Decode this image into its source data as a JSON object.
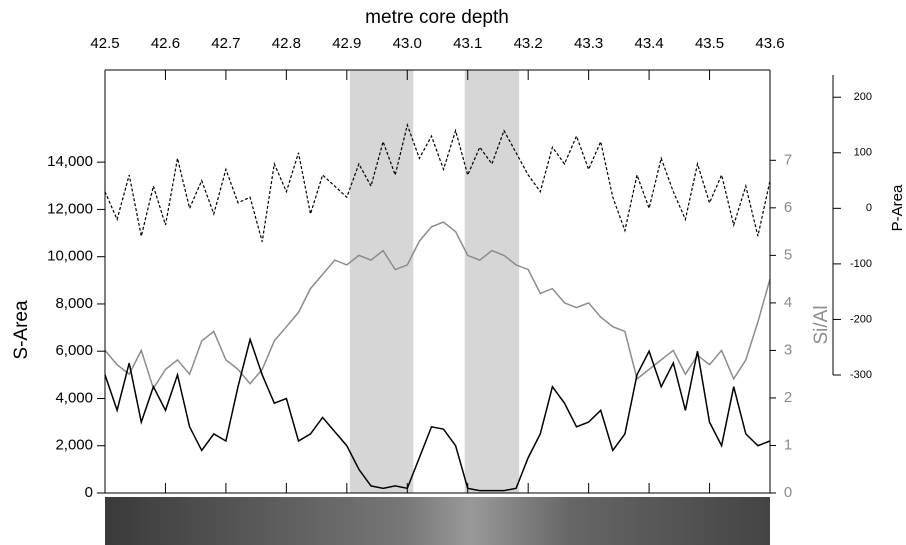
{
  "chart_data": {
    "type": "line",
    "xlabel": "metre core depth",
    "x": [
      42.5,
      42.52,
      42.54,
      42.56,
      42.58,
      42.6,
      42.62,
      42.64,
      42.66,
      42.68,
      42.7,
      42.72,
      42.74,
      42.76,
      42.78,
      42.8,
      42.82,
      42.84,
      42.86,
      42.88,
      42.9,
      42.92,
      42.94,
      42.96,
      42.98,
      43.0,
      43.02,
      43.04,
      43.06,
      43.08,
      43.1,
      43.12,
      43.14,
      43.16,
      43.18,
      43.2,
      43.22,
      43.24,
      43.26,
      43.28,
      43.3,
      43.32,
      43.34,
      43.36,
      43.38,
      43.4,
      43.42,
      43.44,
      43.46,
      43.48,
      43.5,
      43.52,
      43.54,
      43.56,
      43.58,
      43.6
    ],
    "xlim": [
      42.5,
      43.6
    ],
    "xticks": [
      42.5,
      42.6,
      42.7,
      42.8,
      42.9,
      {
        "value": 43.0,
        "label": "43.0"
      },
      43.1,
      43.2,
      43.3,
      43.4,
      43.5,
      43.6
    ],
    "ylim": [
      0,
      17900
    ],
    "yticks": [
      0,
      {
        "value": 2000,
        "label": "2,000"
      },
      {
        "value": 4000,
        "label": "4,000"
      },
      {
        "value": 6000,
        "label": "6,000"
      },
      {
        "value": 8000,
        "label": "8,000"
      },
      {
        "value": 10000,
        "label": "10,000"
      },
      {
        "value": 12000,
        "label": "12,000"
      },
      {
        "value": 14000,
        "label": "14,000"
      }
    ],
    "y2lim": [
      0,
      8.9
    ],
    "y2ticks": [
      0,
      1,
      2,
      3,
      4,
      5,
      6,
      7
    ],
    "y3lim": [
      -300,
      240
    ],
    "y3ticks": [
      -300,
      -200,
      -100,
      0,
      100,
      200
    ],
    "shaded_ranges": [
      [
        42.905,
        43.01
      ],
      [
        43.095,
        43.185
      ]
    ],
    "series": [
      {
        "name": "S-Area",
        "color": "#000000",
        "axis": "y",
        "values": [
          5000,
          3500,
          5500,
          3000,
          4500,
          3500,
          5000,
          2800,
          1800,
          2500,
          2200,
          4500,
          6500,
          5000,
          3800,
          4000,
          2200,
          2500,
          3200,
          2600,
          2000,
          1000,
          300,
          200,
          300,
          200,
          1500,
          2800,
          2700,
          2000,
          200,
          100,
          100,
          100,
          200,
          1500,
          2500,
          4500,
          3800,
          2800,
          3000,
          3500,
          1800,
          2500,
          5000,
          6000,
          4500,
          5500,
          3500,
          6000,
          3000,
          2000,
          4500,
          2500,
          2000,
          2200
        ]
      },
      {
        "name": "Si/Al",
        "color": "#8c8c8c",
        "axis": "y2",
        "values": [
          3,
          2.7,
          2.5,
          3.0,
          2.2,
          2.6,
          2.8,
          2.5,
          3.2,
          3.4,
          2.8,
          2.6,
          2.3,
          2.6,
          3.2,
          3.5,
          3.8,
          4.3,
          4.6,
          4.9,
          4.8,
          5.0,
          4.9,
          5.1,
          4.7,
          4.8,
          5.3,
          5.6,
          5.7,
          5.5,
          5.0,
          4.9,
          5.1,
          5.0,
          4.8,
          4.7,
          4.2,
          4.3,
          4.0,
          3.9,
          4.0,
          3.7,
          3.5,
          3.4,
          2.4,
          2.6,
          2.8,
          3.0,
          2.5,
          2.9,
          2.7,
          3.0,
          2.4,
          2.8,
          3.6,
          4.5
        ]
      },
      {
        "name": "P-Area",
        "color": "#000000",
        "axis": "y3",
        "dashed": true,
        "values": [
          30,
          -20,
          60,
          -50,
          40,
          -30,
          90,
          0,
          50,
          -10,
          70,
          10,
          20,
          -60,
          80,
          30,
          100,
          -10,
          60,
          40,
          20,
          80,
          40,
          120,
          60,
          150,
          90,
          130,
          70,
          140,
          60,
          110,
          80,
          140,
          100,
          60,
          30,
          110,
          80,
          130,
          70,
          120,
          20,
          -40,
          60,
          0,
          90,
          30,
          -20,
          80,
          10,
          60,
          -30,
          40,
          -50,
          50
        ]
      }
    ]
  }
}
